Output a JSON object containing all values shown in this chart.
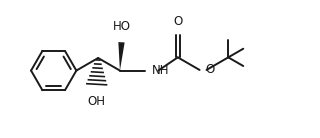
{
  "bg_color": "#ffffff",
  "line_color": "#1a1a1a",
  "line_width": 1.4,
  "font_size": 8.5,
  "fig_width": 3.2,
  "fig_height": 1.38,
  "dpi": 100,
  "xlim": [
    0,
    10
  ],
  "ylim": [
    0,
    4.3
  ]
}
